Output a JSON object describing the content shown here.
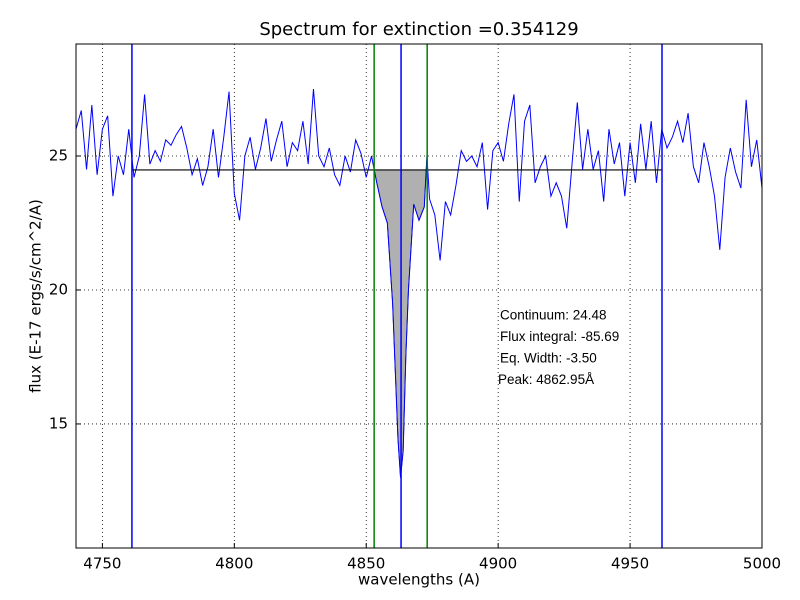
{
  "chart_data": {
    "type": "line",
    "title": "Spectrum for extinction =0.354129",
    "xlabel": "wavelengths (A)",
    "ylabel": "flux (E-17 ergs/s/cm^2/A)",
    "xlim": [
      4740,
      5000
    ],
    "ylim": [
      10.37,
      29.18
    ],
    "xticks": [
      4750,
      4800,
      4850,
      4900,
      4950,
      5000
    ],
    "yticks": [
      15,
      20,
      25
    ],
    "grid": true,
    "color": "#0000ff",
    "x": [
      4740,
      4742,
      4744,
      4746,
      4748,
      4750,
      4752,
      4754,
      4756,
      4758,
      4760,
      4762,
      4764,
      4766,
      4768,
      4770,
      4772,
      4774,
      4776,
      4778,
      4780,
      4782,
      4784,
      4786,
      4788,
      4790,
      4792,
      4794,
      4796,
      4798,
      4800,
      4802,
      4804,
      4806,
      4808,
      4810,
      4812,
      4814,
      4816,
      4818,
      4820,
      4822,
      4824,
      4826,
      4828,
      4830,
      4832,
      4834,
      4836,
      4838,
      4840,
      4842,
      4844,
      4846,
      4848,
      4850,
      4852,
      4854,
      4856,
      4858,
      4860,
      4861,
      4862,
      4863,
      4864,
      4865,
      4866,
      4868,
      4870,
      4872,
      4873,
      4874,
      4876,
      4878,
      4880,
      4882,
      4884,
      4886,
      4888,
      4890,
      4892,
      4894,
      4896,
      4898,
      4900,
      4902,
      4904,
      4906,
      4908,
      4910,
      4912,
      4914,
      4916,
      4918,
      4920,
      4922,
      4924,
      4926,
      4928,
      4930,
      4932,
      4934,
      4936,
      4938,
      4940,
      4942,
      4944,
      4946,
      4948,
      4950,
      4952,
      4954,
      4956,
      4958,
      4960,
      4962,
      4964,
      4966,
      4968,
      4970,
      4972,
      4974,
      4976,
      4978,
      4980,
      4982,
      4984,
      4986,
      4988,
      4990,
      4992,
      4994,
      4996,
      4998,
      5000
    ],
    "values": [
      26.0,
      26.7,
      24.5,
      26.9,
      24.3,
      26.0,
      26.5,
      23.5,
      25.0,
      24.3,
      26.0,
      24.2,
      25.0,
      27.3,
      24.7,
      25.2,
      24.8,
      25.6,
      25.4,
      25.8,
      26.1,
      25.3,
      24.3,
      24.9,
      23.9,
      24.6,
      26.0,
      24.2,
      25.7,
      27.4,
      23.6,
      22.6,
      25.0,
      25.7,
      24.5,
      25.3,
      26.4,
      24.8,
      25.6,
      26.3,
      24.6,
      25.5,
      25.2,
      26.3,
      24.7,
      27.5,
      25.0,
      24.6,
      25.3,
      24.3,
      23.9,
      25.0,
      24.4,
      25.6,
      25.1,
      24.2,
      25.0,
      24.0,
      23.1,
      22.5,
      19.5,
      17.0,
      14.5,
      13.0,
      14.0,
      17.5,
      20.0,
      23.2,
      22.6,
      23.1,
      25.0,
      23.4,
      22.8,
      21.1,
      23.3,
      22.8,
      23.9,
      25.2,
      24.8,
      25.0,
      24.6,
      25.5,
      23.0,
      25.2,
      25.5,
      24.8,
      26.2,
      27.3,
      23.3,
      26.3,
      26.9,
      24.0,
      24.6,
      25.0,
      23.5,
      24.0,
      23.5,
      22.3,
      24.7,
      27.0,
      24.5,
      26.0,
      24.5,
      25.2,
      23.3,
      26.0,
      24.7,
      25.5,
      23.5,
      25.5,
      24.0,
      26.2,
      24.5,
      26.3,
      24.0,
      26.0,
      25.3,
      25.7,
      26.3,
      25.5,
      26.6,
      24.6,
      24.0,
      25.5,
      24.6,
      23.5,
      21.5,
      24.2,
      25.3,
      24.4,
      23.8,
      27.1,
      24.6,
      25.6,
      23.8
    ],
    "vlines": [
      {
        "x": 4761.2,
        "color": "#0000ff"
      },
      {
        "x": 4853.0,
        "color": "#008000"
      },
      {
        "x": 4863.2,
        "color": "#0000ff"
      },
      {
        "x": 4873.1,
        "color": "#008000"
      },
      {
        "x": 4962.1,
        "color": "#0000ff"
      }
    ],
    "continuum": {
      "value": 24.48,
      "from": 4761.2,
      "to": 4962.1,
      "color": "#000000"
    },
    "fill_between": {
      "from": 4853.0,
      "to": 4873.1,
      "color": "#b0b0b0"
    },
    "annotations": [
      "Continuum: 24.48",
      "Flux integral: -85.69",
      "Eq. Width: -3.50",
      "Peak: 4862.95Å"
    ]
  }
}
